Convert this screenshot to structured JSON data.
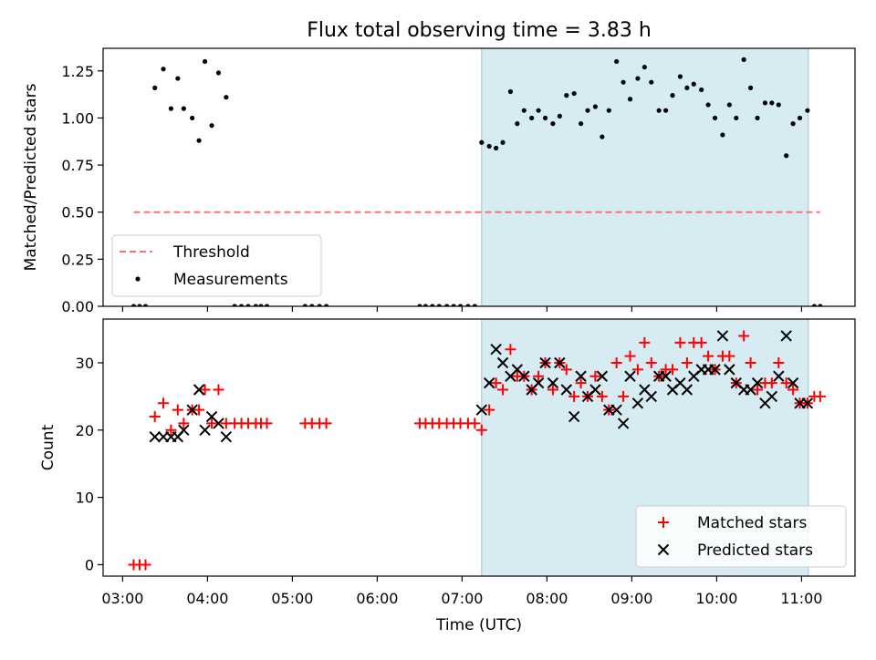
{
  "figure": {
    "title": "Flux total observing time = 3.83 h",
    "xlabel": "Time (UTC)",
    "x_ticks": [
      "03:00",
      "04:00",
      "05:00",
      "06:00",
      "07:00",
      "08:00",
      "09:00",
      "10:00",
      "11:00"
    ],
    "x_tick_hours": [
      3,
      4,
      5,
      6,
      7,
      8,
      9,
      10,
      11
    ],
    "xlim_hours": [
      2.77,
      11.63
    ],
    "shaded_interval_hours": [
      7.23,
      11.08
    ],
    "shade_color": "#add8e6"
  },
  "chart_data": [
    {
      "type": "scatter",
      "ylabel": "Matched/Predicted stars",
      "ylim": [
        0,
        1.37
      ],
      "y_ticks": [
        "0.00",
        "0.25",
        "0.50",
        "0.75",
        "1.00",
        "1.25"
      ],
      "y_tick_values": [
        0,
        0.25,
        0.5,
        0.75,
        1.0,
        1.25
      ],
      "legend": {
        "placement": "lower-left",
        "entries": [
          "Threshold",
          "Measurements"
        ]
      },
      "threshold": {
        "name": "Threshold",
        "value": 0.5,
        "x_range_hours": [
          3.13,
          11.22
        ],
        "color": "#ff7070",
        "style": "dashed"
      },
      "series": [
        {
          "name": "Measurements",
          "color": "#000000",
          "marker": "dot",
          "x_hours": [
            3.13,
            3.2,
            3.27,
            3.38,
            3.48,
            3.57,
            3.65,
            3.72,
            3.82,
            3.9,
            3.97,
            4.05,
            4.13,
            4.22,
            4.32,
            4.4,
            4.48,
            4.57,
            4.63,
            4.7,
            5.15,
            5.23,
            5.32,
            5.4,
            6.5,
            6.57,
            6.65,
            6.73,
            6.82,
            6.9,
            6.98,
            7.07,
            7.15,
            7.23,
            7.32,
            7.4,
            7.48,
            7.57,
            7.65,
            7.73,
            7.82,
            7.9,
            7.98,
            8.07,
            8.15,
            8.23,
            8.32,
            8.4,
            8.48,
            8.57,
            8.65,
            8.73,
            8.82,
            8.9,
            8.98,
            9.07,
            9.15,
            9.23,
            9.32,
            9.4,
            9.48,
            9.57,
            9.65,
            9.73,
            9.82,
            9.9,
            9.98,
            10.07,
            10.15,
            10.23,
            10.32,
            10.4,
            10.48,
            10.57,
            10.65,
            10.73,
            10.82,
            10.9,
            10.98,
            11.07,
            11.15,
            11.22
          ],
          "y": [
            0,
            0,
            0,
            1.16,
            1.26,
            1.05,
            1.21,
            1.05,
            1.0,
            0.88,
            1.3,
            0.96,
            1.24,
            1.11,
            0,
            0,
            0,
            0,
            0,
            0,
            0,
            0,
            0,
            0,
            0,
            0,
            0,
            0,
            0,
            0,
            0,
            0,
            0,
            0.87,
            0.85,
            0.84,
            0.87,
            1.14,
            0.97,
            1.04,
            1.0,
            1.04,
            1.0,
            0.97,
            1.01,
            1.12,
            1.13,
            0.97,
            1.04,
            1.06,
            0.9,
            1.04,
            1.3,
            1.19,
            1.1,
            1.21,
            1.27,
            1.19,
            1.04,
            1.04,
            1.12,
            1.22,
            1.16,
            1.18,
            1.15,
            1.07,
            1.0,
            0.91,
            1.07,
            1.0,
            1.31,
            1.16,
            1.0,
            1.08,
            1.08,
            1.07,
            0.8,
            0.97,
            1.0,
            1.04,
            0,
            0
          ]
        }
      ]
    },
    {
      "type": "scatter",
      "ylabel": "Count",
      "ylim": [
        -1.7,
        36.5
      ],
      "y_ticks": [
        "0",
        "10",
        "20",
        "30"
      ],
      "y_tick_values": [
        0,
        10,
        20,
        30
      ],
      "legend": {
        "placement": "lower-right",
        "entries": [
          "Matched stars",
          "Predicted stars"
        ]
      },
      "series": [
        {
          "name": "Matched stars",
          "color": "#ff0000",
          "marker": "plus",
          "x_hours": [
            3.13,
            3.2,
            3.27,
            3.38,
            3.48,
            3.57,
            3.65,
            3.72,
            3.82,
            3.9,
            3.97,
            4.05,
            4.13,
            4.22,
            4.32,
            4.4,
            4.48,
            4.57,
            4.63,
            4.7,
            5.15,
            5.23,
            5.32,
            5.4,
            6.5,
            6.57,
            6.65,
            6.73,
            6.82,
            6.9,
            6.98,
            7.07,
            7.15,
            7.23,
            7.32,
            7.4,
            7.48,
            7.57,
            7.65,
            7.73,
            7.82,
            7.9,
            7.98,
            8.07,
            8.15,
            8.23,
            8.32,
            8.4,
            8.48,
            8.57,
            8.65,
            8.73,
            8.82,
            8.9,
            8.98,
            9.07,
            9.15,
            9.23,
            9.32,
            9.4,
            9.48,
            9.57,
            9.65,
            9.73,
            9.82,
            9.9,
            9.98,
            10.07,
            10.15,
            10.23,
            10.32,
            10.4,
            10.48,
            10.57,
            10.65,
            10.73,
            10.82,
            10.9,
            10.98,
            11.07,
            11.15,
            11.22
          ],
          "y": [
            0,
            0,
            0,
            22,
            24,
            20,
            23,
            21,
            23,
            23,
            26,
            21,
            26,
            21,
            21,
            21,
            21,
            21,
            21,
            21,
            21,
            21,
            21,
            21,
            21,
            21,
            21,
            21,
            21,
            21,
            21,
            21,
            21,
            20,
            23,
            27,
            26,
            32,
            28,
            28,
            26,
            28,
            30,
            26,
            30,
            29,
            25,
            27,
            25,
            28,
            25,
            23,
            30,
            25,
            31,
            29,
            33,
            30,
            28,
            29,
            29,
            33,
            30,
            33,
            33,
            31,
            29,
            31,
            31,
            27,
            34,
            30,
            26,
            27,
            27,
            30,
            27,
            26,
            24,
            24,
            25,
            25
          ]
        },
        {
          "name": "Predicted stars",
          "color": "#000000",
          "marker": "x",
          "x_hours": [
            3.38,
            3.48,
            3.57,
            3.65,
            3.72,
            3.82,
            3.9,
            3.97,
            4.05,
            4.13,
            4.22,
            7.23,
            7.32,
            7.4,
            7.48,
            7.57,
            7.65,
            7.73,
            7.82,
            7.9,
            7.98,
            8.07,
            8.15,
            8.23,
            8.32,
            8.4,
            8.48,
            8.57,
            8.65,
            8.73,
            8.82,
            8.9,
            8.98,
            9.07,
            9.15,
            9.23,
            9.32,
            9.4,
            9.48,
            9.57,
            9.65,
            9.73,
            9.82,
            9.9,
            9.98,
            10.07,
            10.15,
            10.23,
            10.32,
            10.4,
            10.48,
            10.57,
            10.65,
            10.73,
            10.82,
            10.9,
            10.98,
            11.07
          ],
          "y": [
            19,
            19,
            19,
            19,
            20,
            23,
            26,
            20,
            22,
            21,
            19,
            23,
            27,
            32,
            30,
            28,
            29,
            28,
            26,
            27,
            30,
            27,
            30,
            26,
            22,
            28,
            25,
            26,
            28,
            23,
            23,
            21,
            28,
            24,
            26,
            25,
            28,
            28,
            26,
            27,
            26,
            28,
            29,
            29,
            29,
            34,
            29,
            27,
            26,
            26,
            27,
            24,
            25,
            28,
            34,
            27,
            24,
            24
          ]
        }
      ]
    }
  ]
}
